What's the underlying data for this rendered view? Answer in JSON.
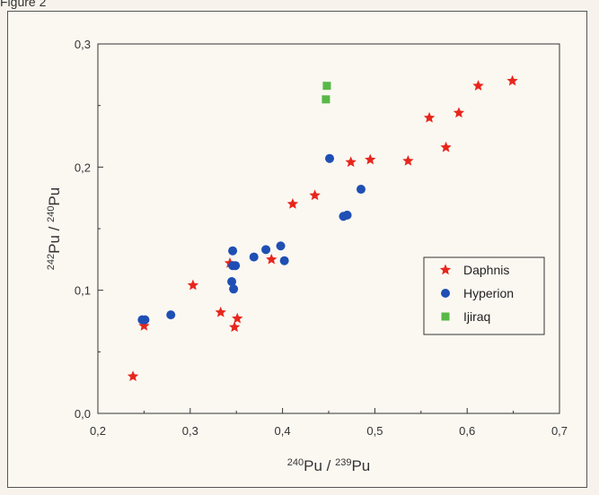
{
  "caption": "Figure 2",
  "chart_data": {
    "type": "scatter",
    "xlabel": {
      "base1": "Pu",
      "sup1": "240",
      "sep": " / ",
      "base2": "Pu",
      "sup2": "239"
    },
    "ylabel": {
      "base1": "Pu",
      "sup1": "242",
      "sep": " / ",
      "base2": "Pu",
      "sup2": "240"
    },
    "xlim": [
      0.2,
      0.7
    ],
    "ylim": [
      0.0,
      0.3
    ],
    "x_ticks": [
      "0,2",
      "0,3",
      "0,4",
      "0,5",
      "0,6",
      "0,7"
    ],
    "y_ticks": [
      "0,0",
      "0,1",
      "0,2",
      "0,3"
    ],
    "legend_position": "right",
    "series": [
      {
        "name": "Daphnis",
        "marker": "star",
        "color": "#e8261c",
        "points": [
          [
            0.238,
            0.03
          ],
          [
            0.25,
            0.071
          ],
          [
            0.303,
            0.104
          ],
          [
            0.333,
            0.082
          ],
          [
            0.343,
            0.122
          ],
          [
            0.348,
            0.07
          ],
          [
            0.351,
            0.077
          ],
          [
            0.388,
            0.125
          ],
          [
            0.411,
            0.17
          ],
          [
            0.435,
            0.177
          ],
          [
            0.474,
            0.204
          ],
          [
            0.495,
            0.206
          ],
          [
            0.536,
            0.205
          ],
          [
            0.559,
            0.24
          ],
          [
            0.577,
            0.216
          ],
          [
            0.591,
            0.244
          ],
          [
            0.612,
            0.266
          ],
          [
            0.649,
            0.27
          ]
        ]
      },
      {
        "name": "Hyperion",
        "marker": "circle",
        "color": "#1f4fb4",
        "points": [
          [
            0.248,
            0.076
          ],
          [
            0.251,
            0.076
          ],
          [
            0.279,
            0.08
          ],
          [
            0.345,
            0.107
          ],
          [
            0.347,
            0.101
          ],
          [
            0.346,
            0.132
          ],
          [
            0.346,
            0.12
          ],
          [
            0.349,
            0.12
          ],
          [
            0.369,
            0.127
          ],
          [
            0.382,
            0.133
          ],
          [
            0.398,
            0.136
          ],
          [
            0.402,
            0.124
          ],
          [
            0.451,
            0.207
          ],
          [
            0.466,
            0.16
          ],
          [
            0.47,
            0.161
          ],
          [
            0.485,
            0.182
          ]
        ]
      },
      {
        "name": "Ijiraq",
        "marker": "square",
        "color": "#58b947",
        "points": [
          [
            0.448,
            0.266
          ],
          [
            0.447,
            0.255
          ]
        ]
      }
    ]
  }
}
